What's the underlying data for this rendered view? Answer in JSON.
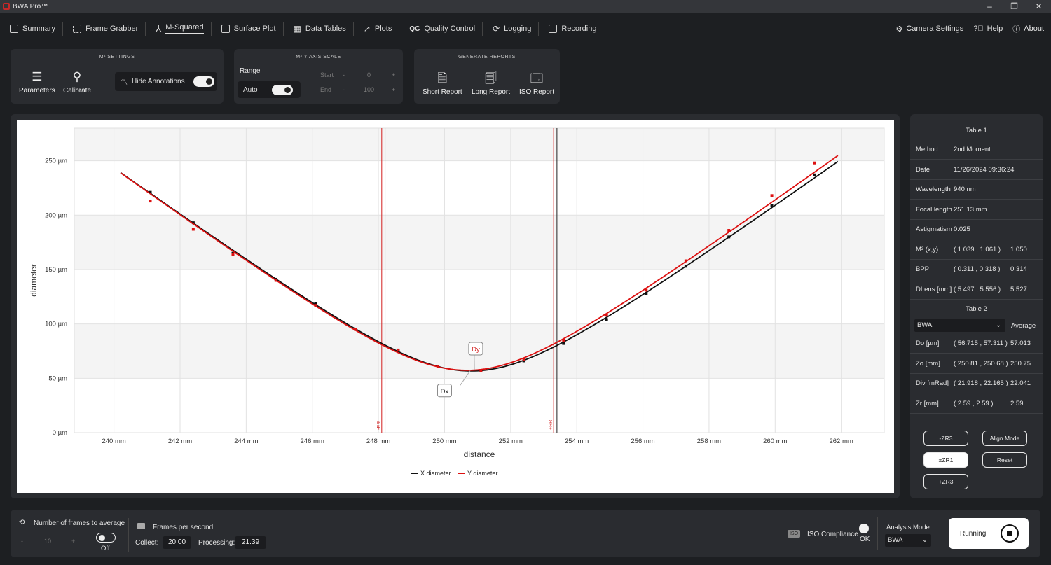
{
  "app": {
    "title": "BWA Pro™"
  },
  "nav": {
    "tabs": [
      "Summary",
      "Frame Grabber",
      "M-Squared",
      "Surface Plot",
      "Data Tables",
      "Plots",
      "Quality Control",
      "Logging",
      "Recording"
    ],
    "right": [
      "Camera Settings",
      "Help",
      "About"
    ]
  },
  "m2settings": {
    "title": "M² SETTINGS",
    "parameters": "Parameters",
    "calibrate": "Calibrate",
    "hide_annotations": "Hide Annotations"
  },
  "yscale": {
    "title": "M² Y AXIS SCALE",
    "range": "Range",
    "auto": "Auto",
    "start_label": "Start",
    "start_value": "0",
    "end_label": "End",
    "end_value": "100",
    "minus": "-",
    "plus": "+"
  },
  "reports": {
    "title": "GENERATE REPORTS",
    "short": "Short Report",
    "long": "Long Report",
    "iso": "ISO Report"
  },
  "chart_data": {
    "type": "line",
    "xlabel": "distance",
    "ylabel": "diameter",
    "xlim": [
      238.8,
      263.3
    ],
    "ylim": [
      0,
      280
    ],
    "xticks": [
      "240 mm",
      "242 mm",
      "244 mm",
      "246 mm",
      "248 mm",
      "250 mm",
      "252 mm",
      "254 mm",
      "256 mm",
      "258 mm",
      "260 mm",
      "262 mm"
    ],
    "xtick_values": [
      240,
      242,
      244,
      246,
      248,
      250,
      252,
      254,
      256,
      258,
      260,
      262
    ],
    "yticks": [
      "0 µm",
      "50 µm",
      "100 µm",
      "150 µm",
      "200 µm",
      "250 µm"
    ],
    "ytick_values": [
      0,
      50,
      100,
      150,
      200,
      250
    ],
    "series": [
      {
        "name": "X diameter",
        "color": "#111111",
        "z0": 250.81,
        "d0": 56.715,
        "zr": 2.59,
        "x_range": [
          240.2,
          261.9
        ],
        "points": [
          [
            241.1,
            221
          ],
          [
            242.4,
            193
          ],
          [
            243.6,
            165
          ],
          [
            244.9,
            141
          ],
          [
            246.1,
            119
          ],
          [
            247.3,
            95
          ],
          [
            248.6,
            75
          ],
          [
            249.8,
            61
          ],
          [
            251.1,
            57
          ],
          [
            252.4,
            66
          ],
          [
            253.6,
            82
          ],
          [
            254.9,
            104
          ],
          [
            256.1,
            128
          ],
          [
            257.3,
            153
          ],
          [
            258.6,
            180
          ],
          [
            259.9,
            209
          ],
          [
            261.2,
            237
          ]
        ]
      },
      {
        "name": "Y diameter",
        "color": "#dd1111",
        "z0": 250.68,
        "d0": 57.311,
        "zr": 2.59,
        "x_range": [
          240.2,
          261.9
        ],
        "points": [
          [
            241.1,
            213
          ],
          [
            242.4,
            187
          ],
          [
            243.6,
            164
          ],
          [
            244.9,
            140
          ],
          [
            246.1,
            117
          ],
          [
            247.3,
            95
          ],
          [
            248.6,
            76
          ],
          [
            249.8,
            61
          ],
          [
            251.1,
            57
          ],
          [
            252.4,
            67
          ],
          [
            253.6,
            85
          ],
          [
            254.9,
            108
          ],
          [
            256.1,
            131
          ],
          [
            257.3,
            158
          ],
          [
            258.6,
            186
          ],
          [
            259.9,
            218
          ],
          [
            261.2,
            248
          ]
        ]
      }
    ],
    "annotations": {
      "dx_label": "Dx",
      "dy_label": "Dy",
      "minus_rr_label": "-RR",
      "plus_rr_label": "+RR"
    },
    "vlines": {
      "red": [
        248.1,
        253.3
      ],
      "black": [
        248.2,
        253.4
      ]
    },
    "grid": true,
    "legend": "bottom-center"
  },
  "table1": {
    "title": "Table 1",
    "rows": [
      {
        "k": "Method",
        "v": "2nd Moment",
        "v2": ""
      },
      {
        "k": "Date",
        "v": "11/26/2024 09:36:24",
        "v2": ""
      },
      {
        "k": "Wavelength",
        "v": "940 nm",
        "v2": ""
      },
      {
        "k": "Focal length",
        "v": "251.13 mm",
        "v2": ""
      },
      {
        "k": "Astigmatism",
        "v": "0.025",
        "v2": ""
      },
      {
        "k": "M² (x,y)",
        "v": "( 1.039 , 1.061 )",
        "v2": "1.050"
      },
      {
        "k": "BPP",
        "v": "( 0.311 , 0.318 )",
        "v2": "0.314"
      },
      {
        "k": "DLens [mm]",
        "v": "( 5.497 , 5.556 )",
        "v2": "5.527"
      }
    ]
  },
  "table2": {
    "title": "Table 2",
    "select": "BWA",
    "average": "Average",
    "rows": [
      {
        "k": "Do [µm]",
        "v": "( 56.715 , 57.311 )",
        "v2": "57.013"
      },
      {
        "k": "Zo [mm]",
        "v": "( 250.81 , 250.68 )",
        "v2": "250.75"
      },
      {
        "k": "Div [mRad]",
        "v": "( 21.918 , 22.165 )",
        "v2": "22.041"
      },
      {
        "k": "Zr [mm]",
        "v": "( 2.59 , 2.59 )",
        "v2": "2.59"
      }
    ]
  },
  "buttons": {
    "minus_zr3": "-ZR3",
    "align_mode": "Align Mode",
    "pm_zr1": "±ZR1",
    "reset": "Reset",
    "plus_zr3": "+ZR3"
  },
  "bottom": {
    "frames_avg_label": "Number of frames to average",
    "frames_avg_value": "10",
    "off": "Off",
    "fps_label": "Frames per second",
    "collect_label": "Collect:",
    "collect_value": "20.00",
    "processing_label": "Processing:",
    "processing_value": "21.39",
    "iso_badge": "ISO",
    "iso_label": "ISO Compliance",
    "iso_status": "OK",
    "analysis_label": "Analysis Mode",
    "analysis_value": "BWA",
    "running": "Running"
  }
}
